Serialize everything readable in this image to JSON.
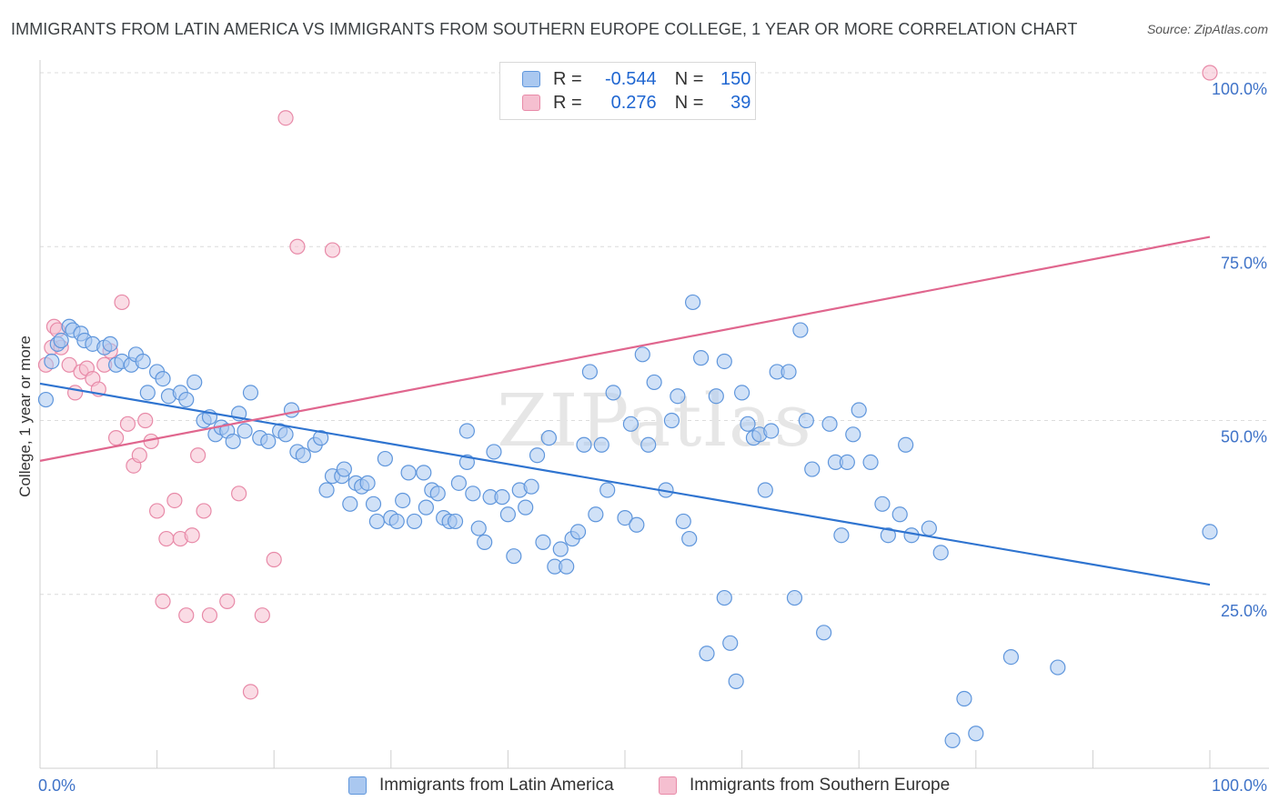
{
  "title": "IMMIGRANTS FROM LATIN AMERICA VS IMMIGRANTS FROM SOUTHERN EUROPE COLLEGE, 1 YEAR OR MORE CORRELATION CHART",
  "source": "Source: ZipAtlas.com",
  "watermark": "ZIPatlas",
  "colors": {
    "blue_fill": "#aac8f0",
    "blue_stroke": "#5f96dc",
    "blue_line": "#2f74d0",
    "pink_fill": "#f5bfd0",
    "pink_stroke": "#e88aa8",
    "pink_line": "#e0668e",
    "axis_text": "#3f73c8",
    "grid": "#dcdcdc"
  },
  "legend": {
    "r_label": "R =",
    "n_label": "N =",
    "series": [
      {
        "r": "-0.544",
        "n": "150"
      },
      {
        "r": "0.276",
        "n": "39"
      }
    ]
  },
  "chart_data": {
    "type": "scatter",
    "xlabel": "",
    "ylabel": "College, 1 year or more",
    "xlim": [
      0,
      100
    ],
    "ylim": [
      0,
      100
    ],
    "x_tick_labels": [
      "0.0%",
      "100.0%"
    ],
    "y_ticks": [
      25,
      50,
      75,
      100
    ],
    "y_tick_labels": [
      "25.0%",
      "50.0%",
      "75.0%",
      "100.0%"
    ],
    "grid": true,
    "legend_position": "bottom-center",
    "series": [
      {
        "name": "Immigrants from Latin America",
        "r": -0.544,
        "n": 150,
        "trend": {
          "x": [
            0,
            100
          ],
          "y": [
            55.3,
            26.4
          ]
        },
        "points": [
          [
            0.5,
            53
          ],
          [
            1,
            58.5
          ],
          [
            1.5,
            61
          ],
          [
            1.8,
            61.5
          ],
          [
            2.5,
            63.5
          ],
          [
            2.8,
            63
          ],
          [
            3.5,
            62.5
          ],
          [
            3.8,
            61.5
          ],
          [
            4.5,
            61
          ],
          [
            5.5,
            60.5
          ],
          [
            6,
            61
          ],
          [
            6.5,
            58
          ],
          [
            7,
            58.5
          ],
          [
            7.8,
            58
          ],
          [
            8.2,
            59.5
          ],
          [
            8.8,
            58.5
          ],
          [
            9.2,
            54
          ],
          [
            10,
            57
          ],
          [
            10.5,
            56
          ],
          [
            11,
            53.5
          ],
          [
            12,
            54
          ],
          [
            12.5,
            53
          ],
          [
            13.2,
            55.5
          ],
          [
            14,
            50
          ],
          [
            14.5,
            50.5
          ],
          [
            15,
            48
          ],
          [
            15.5,
            49
          ],
          [
            16,
            48.5
          ],
          [
            16.5,
            47
          ],
          [
            17,
            51
          ],
          [
            17.5,
            48.5
          ],
          [
            18,
            54
          ],
          [
            18.8,
            47.5
          ],
          [
            19.5,
            47
          ],
          [
            20.5,
            48.5
          ],
          [
            21,
            48
          ],
          [
            21.5,
            51.5
          ],
          [
            22,
            45.5
          ],
          [
            22.5,
            45
          ],
          [
            23.5,
            46.5
          ],
          [
            24,
            47.5
          ],
          [
            24.5,
            40
          ],
          [
            25,
            42
          ],
          [
            25.8,
            42
          ],
          [
            26,
            43
          ],
          [
            26.5,
            38
          ],
          [
            27,
            41
          ],
          [
            27.5,
            40.5
          ],
          [
            28,
            41
          ],
          [
            28.5,
            38
          ],
          [
            28.8,
            35.5
          ],
          [
            29.5,
            44.5
          ],
          [
            30,
            36
          ],
          [
            30.5,
            35.5
          ],
          [
            31,
            38.5
          ],
          [
            31.5,
            42.5
          ],
          [
            32,
            35.5
          ],
          [
            32.8,
            42.5
          ],
          [
            33,
            37.5
          ],
          [
            33.5,
            40
          ],
          [
            34,
            39.5
          ],
          [
            34.5,
            36
          ],
          [
            35,
            35.5
          ],
          [
            35.5,
            35.5
          ],
          [
            35.8,
            41
          ],
          [
            36.5,
            44
          ],
          [
            36.5,
            48.5
          ],
          [
            37,
            39.5
          ],
          [
            37.5,
            34.5
          ],
          [
            38,
            32.5
          ],
          [
            38.5,
            39
          ],
          [
            38.8,
            45.5
          ],
          [
            39.5,
            39
          ],
          [
            40,
            36.5
          ],
          [
            40.5,
            30.5
          ],
          [
            41,
            40
          ],
          [
            41.5,
            37.5
          ],
          [
            42,
            40.5
          ],
          [
            42.5,
            45
          ],
          [
            43,
            32.5
          ],
          [
            43.5,
            47.5
          ],
          [
            44,
            29
          ],
          [
            44.5,
            31.5
          ],
          [
            45,
            29
          ],
          [
            45.5,
            33
          ],
          [
            46,
            34
          ],
          [
            46.5,
            46.5
          ],
          [
            47,
            57
          ],
          [
            47.5,
            36.5
          ],
          [
            48,
            46.5
          ],
          [
            48.5,
            40
          ],
          [
            49,
            54
          ],
          [
            50,
            36
          ],
          [
            50.5,
            49.5
          ],
          [
            51,
            35
          ],
          [
            51.5,
            59.5
          ],
          [
            52,
            46.5
          ],
          [
            52.5,
            55.5
          ],
          [
            53.5,
            40
          ],
          [
            54,
            50
          ],
          [
            54.5,
            53.5
          ],
          [
            55,
            35.5
          ],
          [
            55.5,
            33
          ],
          [
            55.8,
            67
          ],
          [
            56.5,
            59
          ],
          [
            57,
            16.5
          ],
          [
            57.8,
            53.5
          ],
          [
            58.5,
            24.5
          ],
          [
            58.5,
            58.5
          ],
          [
            59,
            18
          ],
          [
            59.5,
            12.5
          ],
          [
            60,
            54
          ],
          [
            60.5,
            49.5
          ],
          [
            61,
            47.5
          ],
          [
            61.5,
            48
          ],
          [
            62,
            40
          ],
          [
            62.5,
            48.5
          ],
          [
            63,
            57
          ],
          [
            64,
            57
          ],
          [
            64.5,
            24.5
          ],
          [
            65,
            63
          ],
          [
            65.5,
            50
          ],
          [
            66,
            43
          ],
          [
            67,
            19.5
          ],
          [
            67.5,
            49.5
          ],
          [
            68,
            44
          ],
          [
            68.5,
            33.5
          ],
          [
            69,
            44
          ],
          [
            69.5,
            48
          ],
          [
            70,
            51.5
          ],
          [
            71,
            44
          ],
          [
            72,
            38
          ],
          [
            72.5,
            33.5
          ],
          [
            73.5,
            36.5
          ],
          [
            74,
            46.5
          ],
          [
            74.5,
            33.5
          ],
          [
            76,
            34.5
          ],
          [
            77,
            31
          ],
          [
            78,
            4
          ],
          [
            79,
            10
          ],
          [
            80,
            5
          ],
          [
            83,
            16
          ],
          [
            87,
            14.5
          ],
          [
            100,
            34
          ]
        ]
      },
      {
        "name": "Immigrants from Southern Europe",
        "r": 0.276,
        "n": 39,
        "trend": {
          "x": [
            0,
            100
          ],
          "y": [
            44.2,
            76.4
          ]
        },
        "points": [
          [
            0.5,
            58
          ],
          [
            1,
            60.5
          ],
          [
            1.2,
            63.5
          ],
          [
            1.5,
            63
          ],
          [
            1.8,
            60.5
          ],
          [
            2.5,
            58
          ],
          [
            3,
            54
          ],
          [
            3.5,
            57
          ],
          [
            4,
            57.5
          ],
          [
            4.5,
            56
          ],
          [
            5,
            54.5
          ],
          [
            5.5,
            58
          ],
          [
            6,
            60
          ],
          [
            6.5,
            47.5
          ],
          [
            7,
            67
          ],
          [
            7.5,
            49.5
          ],
          [
            8,
            43.5
          ],
          [
            8.5,
            45
          ],
          [
            9,
            50
          ],
          [
            9.5,
            47
          ],
          [
            10,
            37
          ],
          [
            10.5,
            24
          ],
          [
            10.8,
            33
          ],
          [
            11.5,
            38.5
          ],
          [
            12,
            33
          ],
          [
            12.5,
            22
          ],
          [
            13,
            33.5
          ],
          [
            13.5,
            45
          ],
          [
            14,
            37
          ],
          [
            14.5,
            22
          ],
          [
            16,
            24
          ],
          [
            17,
            39.5
          ],
          [
            18,
            11
          ],
          [
            19,
            22
          ],
          [
            20,
            30
          ],
          [
            21,
            93.5
          ],
          [
            22,
            75
          ],
          [
            25,
            74.5
          ],
          [
            100,
            100
          ]
        ]
      }
    ]
  },
  "bottom_legend": [
    "Immigrants from Latin America",
    "Immigrants from Southern Europe"
  ]
}
